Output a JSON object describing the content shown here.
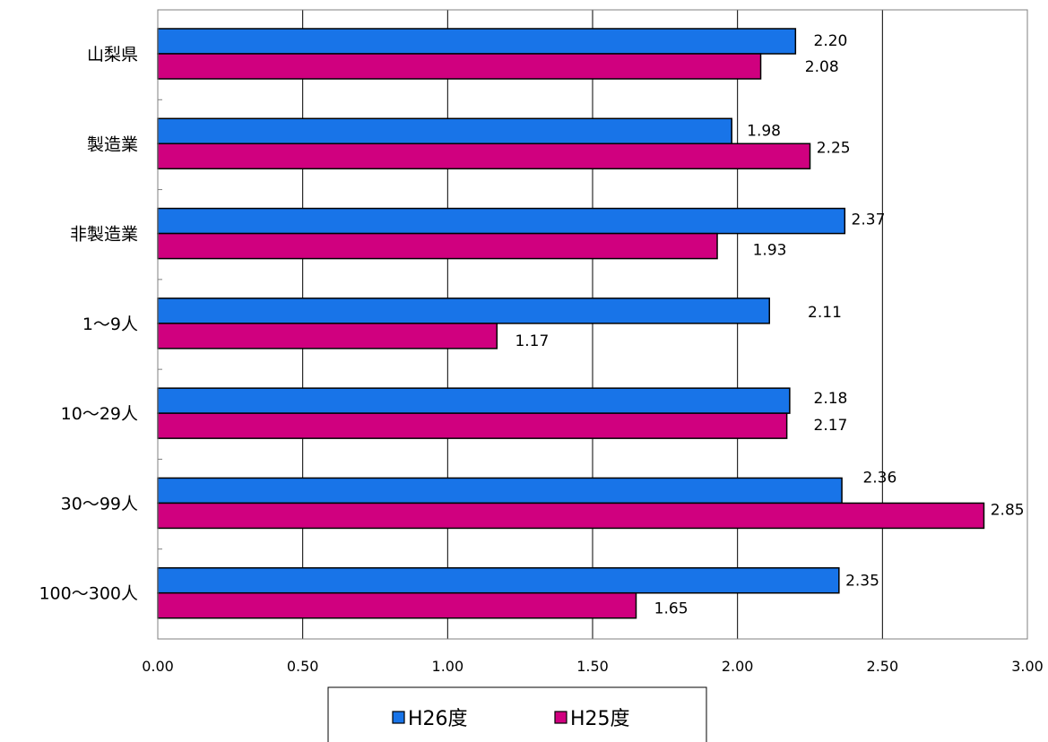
{
  "chart_data": {
    "type": "bar",
    "orientation": "horizontal",
    "categories": [
      "山梨県",
      "製造業",
      "非製造業",
      "1～9人",
      "10～29人",
      "30～99人",
      "100～300人"
    ],
    "series": [
      {
        "name": "H26度",
        "color": "#1874e8",
        "values": [
          2.2,
          1.98,
          2.37,
          2.11,
          2.18,
          2.36,
          2.35
        ]
      },
      {
        "name": "H25度",
        "color": "#d0007f",
        "values": [
          2.08,
          2.25,
          1.93,
          1.17,
          2.17,
          2.85,
          1.65
        ]
      }
    ],
    "value_labels": [
      [
        "2.20",
        "1.98",
        "2.37",
        "2.11",
        "2.18",
        "2.36",
        "2.35"
      ],
      [
        "2.08",
        "2.25",
        "1.93",
        "1.17",
        "2.17",
        "2.85",
        "1.65"
      ]
    ],
    "xlim": [
      0,
      3.0
    ],
    "x_ticks": [
      "0.00",
      "0.50",
      "1.00",
      "1.50",
      "2.00",
      "2.50",
      "3.00"
    ],
    "grid": true,
    "legend_position": "bottom"
  }
}
